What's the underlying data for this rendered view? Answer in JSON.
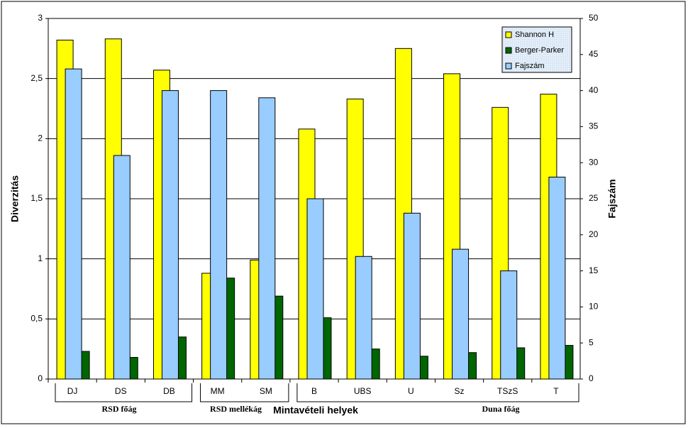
{
  "chart_data": {
    "type": "bar",
    "y_label": "Diverzitás",
    "y2_label": "Fajszám",
    "x_label": "Mintavételi helyek",
    "categories": [
      "DJ",
      "DS",
      "DB",
      "MM",
      "SM",
      "B",
      "UBS",
      "U",
      "Sz",
      "TSzS",
      "T"
    ],
    "groups": [
      {
        "label": "RSD főág",
        "categories": [
          "DJ",
          "DS",
          "DB"
        ]
      },
      {
        "label": "RSD mellékág",
        "categories": [
          "MM",
          "SM"
        ]
      },
      {
        "label": "Duna főág",
        "categories": [
          "B",
          "UBS",
          "U",
          "Sz",
          "TSzS",
          "T"
        ]
      }
    ],
    "series": [
      {
        "name": "Shannon H",
        "color": "#ffff00",
        "axis": "y",
        "values": [
          2.82,
          2.83,
          2.57,
          0.88,
          0.99,
          2.08,
          2.33,
          2.75,
          2.54,
          2.26,
          2.37
        ]
      },
      {
        "name": "Berger-Parker",
        "color": "#006600",
        "axis": "y",
        "values": [
          0.23,
          0.18,
          0.35,
          0.84,
          0.69,
          0.51,
          0.25,
          0.19,
          0.22,
          0.26,
          0.28
        ]
      },
      {
        "name": "Fajszám",
        "color": "#99ccff",
        "axis": "y2",
        "values": [
          43,
          31,
          40,
          40,
          39,
          25,
          17,
          23,
          18,
          15,
          28
        ]
      }
    ],
    "ylim": [
      0,
      3
    ],
    "yticks": [
      0,
      {
        "value": 0.5,
        "label": "0,5"
      },
      1,
      {
        "value": 1.5,
        "label": "1,5"
      },
      2,
      {
        "value": 2.5,
        "label": "2,5"
      },
      3
    ],
    "y2lim": [
      0,
      50
    ],
    "y2ticks": [
      0,
      5,
      10,
      15,
      20,
      25,
      30,
      35,
      40,
      45,
      50
    ],
    "grid": true,
    "legend": "upper right"
  }
}
